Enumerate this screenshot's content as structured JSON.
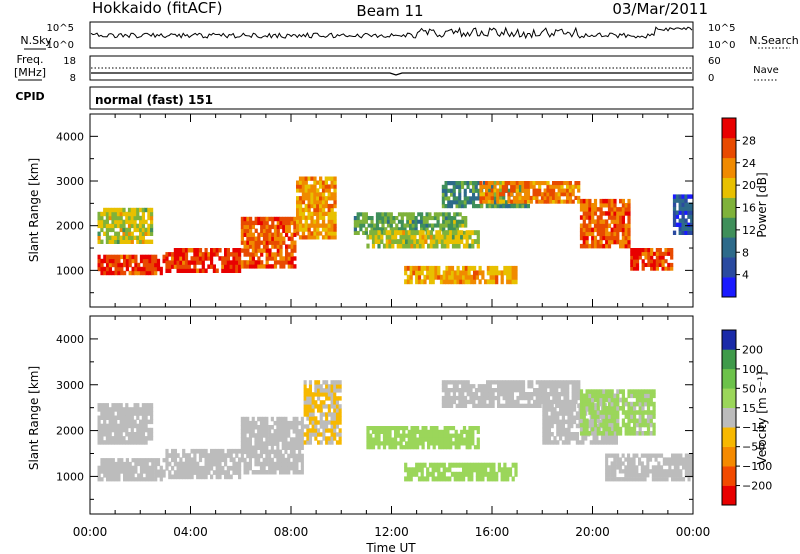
{
  "header": {
    "site": "Hokkaido (fitACF)",
    "beam": "Beam 11",
    "date": "03/Mar/2011"
  },
  "noise_panel": {
    "left_label": "N.Sky",
    "right_label": "N.Search",
    "left_ticks": [
      "10^5",
      "10^0"
    ],
    "right_ticks": [
      "10^5",
      "10^0"
    ]
  },
  "freq_panel": {
    "left_label_1": "Freq.",
    "left_label_2": "[MHz]",
    "right_label": "Nave",
    "left_ticks": [
      "18",
      "8"
    ],
    "right_ticks": [
      "60",
      "0"
    ]
  },
  "cpid": {
    "label": "CPID",
    "value": "normal (fast) 151"
  },
  "x_axis": {
    "label": "Time UT",
    "ticks": [
      "00:00",
      "04:00",
      "08:00",
      "12:00",
      "16:00",
      "20:00",
      "00:00"
    ]
  },
  "y_axis": {
    "label": "Slant Range [km]",
    "ticks": [
      "1000",
      "2000",
      "3000",
      "4000"
    ]
  },
  "chart_data": [
    {
      "type": "heatmap",
      "quantity": "power",
      "xlabel": "Time UT",
      "ylabel": "Slant Range [km]",
      "x_hours": [
        0,
        24
      ],
      "ylim": [
        180,
        4500
      ],
      "colorbar": {
        "label": "Power [dB]",
        "ticks": [
          "4",
          "8",
          "12",
          "16",
          "20",
          "24",
          "28"
        ],
        "range": [
          0,
          32
        ],
        "colors": [
          "#1a1aff",
          "#2a4aa0",
          "#2d6a8a",
          "#3f8f5a",
          "#7fb23a",
          "#e8c000",
          "#f08a00",
          "#e84a00",
          "#e80000"
        ]
      },
      "regions": [
        {
          "t0": 0.3,
          "t1": 3.0,
          "r0": 900,
          "r1": 1350,
          "level": 28
        },
        {
          "t0": 3.0,
          "t1": 6.0,
          "r0": 950,
          "r1": 1500,
          "level": 28
        },
        {
          "t0": 6.0,
          "t1": 8.2,
          "r0": 1050,
          "r1": 2200,
          "level": 26
        },
        {
          "t0": 8.2,
          "t1": 9.8,
          "r0": 1700,
          "r1": 3100,
          "level": 22
        },
        {
          "t0": 0.3,
          "t1": 2.5,
          "r0": 1600,
          "r1": 2400,
          "level": 18
        },
        {
          "t0": 10.5,
          "t1": 15.0,
          "r0": 1800,
          "r1": 2300,
          "level": 14
        },
        {
          "t0": 11.0,
          "t1": 15.5,
          "r0": 1500,
          "r1": 1900,
          "level": 18
        },
        {
          "t0": 12.5,
          "t1": 17.0,
          "r0": 700,
          "r1": 1100,
          "level": 22
        },
        {
          "t0": 14.0,
          "t1": 17.5,
          "r0": 2400,
          "r1": 3000,
          "level": 12
        },
        {
          "t0": 15.5,
          "t1": 19.5,
          "r0": 2500,
          "r1": 3000,
          "level": 24
        },
        {
          "t0": 19.5,
          "t1": 21.5,
          "r0": 1500,
          "r1": 2600,
          "level": 26
        },
        {
          "t0": 21.5,
          "t1": 23.2,
          "r0": 1000,
          "r1": 1500,
          "level": 28
        },
        {
          "t0": 23.2,
          "t1": 24.0,
          "r0": 1800,
          "r1": 2700,
          "level": 6
        }
      ]
    },
    {
      "type": "heatmap",
      "quantity": "velocity",
      "xlabel": "Time UT",
      "ylabel": "Slant Range [km]",
      "x_hours": [
        0,
        24
      ],
      "ylim": [
        180,
        4500
      ],
      "colorbar": {
        "label": "Velocity [m s⁻¹]",
        "ticks": [
          "200",
          "100",
          "50",
          "15",
          "−15",
          "−50",
          "−100",
          "−200"
        ],
        "range": [
          -250,
          250
        ],
        "colors": [
          "#e80000",
          "#f24a00",
          "#f58a00",
          "#f7b800",
          "#bcbcbc",
          "#9bd65a",
          "#6cc24a",
          "#3f9a4a",
          "#1a2aa8"
        ]
      },
      "regions": [
        {
          "t0": 0.3,
          "t1": 3.0,
          "r0": 900,
          "r1": 1400,
          "level": 0
        },
        {
          "t0": 3.0,
          "t1": 6.0,
          "r0": 950,
          "r1": 1600,
          "level": 0
        },
        {
          "t0": 6.0,
          "t1": 8.5,
          "r0": 1050,
          "r1": 2300,
          "level": 0
        },
        {
          "t0": 8.5,
          "t1": 10.0,
          "r0": 1700,
          "r1": 3100,
          "level": -30
        },
        {
          "t0": 0.3,
          "t1": 2.5,
          "r0": 1700,
          "r1": 2600,
          "level": 0
        },
        {
          "t0": 11.0,
          "t1": 15.5,
          "r0": 1600,
          "r1": 2100,
          "level": 60
        },
        {
          "t0": 12.5,
          "t1": 17.0,
          "r0": 900,
          "r1": 1300,
          "level": 60
        },
        {
          "t0": 14.0,
          "t1": 19.5,
          "r0": 2500,
          "r1": 3100,
          "level": 0
        },
        {
          "t0": 18.0,
          "t1": 21.0,
          "r0": 1700,
          "r1": 2600,
          "level": 0
        },
        {
          "t0": 20.5,
          "t1": 24.0,
          "r0": 900,
          "r1": 1500,
          "level": 0
        },
        {
          "t0": 19.5,
          "t1": 22.5,
          "r0": 1900,
          "r1": 2900,
          "level": 40
        }
      ]
    }
  ]
}
